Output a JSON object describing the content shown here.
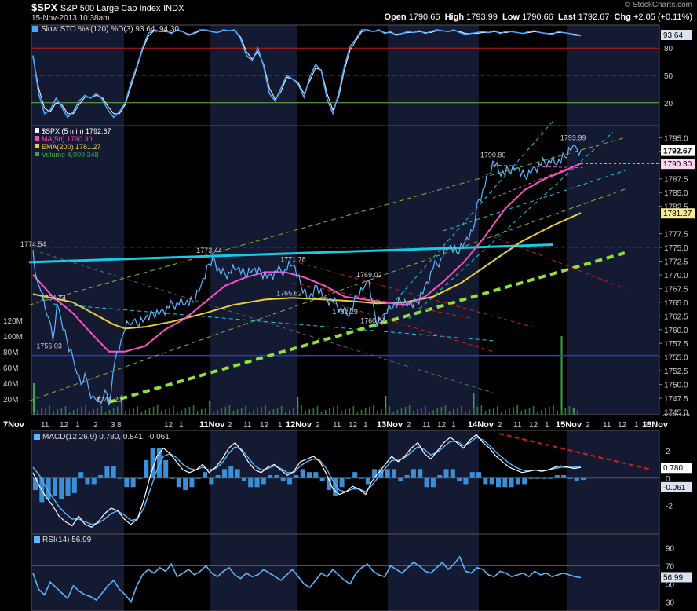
{
  "header": {
    "symbol": "$SPX",
    "name": "S&P 500 Large Cap Index",
    "exchange": "INDX",
    "datetime": "15-Nov-2013 10:38am",
    "brand": "© StockCharts.com",
    "open_label": "Open",
    "open": "1790.66",
    "high_label": "High",
    "high": "1793.99",
    "low_label": "Low",
    "low": "1790.66",
    "last_label": "Last",
    "last": "1792.67",
    "chg_label": "Chg",
    "chg": "+2.05 (+0.11%)"
  },
  "chart_data": {
    "type": "line",
    "x_day_labels": [
      "7Nov",
      "11Nov",
      "12Nov",
      "13Nov",
      "14Nov",
      "15Nov",
      "18Nov"
    ],
    "x_hour_labels": [
      "11",
      "12",
      "1",
      "2",
      "3",
      "8",
      "12",
      "1",
      "2",
      "11",
      "12",
      "1",
      "2",
      "11",
      "12",
      "1",
      "2",
      "11",
      "12",
      "1",
      "2",
      "11",
      "12",
      "1",
      "2",
      "11",
      "12",
      "1",
      "2"
    ],
    "panels": {
      "sto": {
        "legend": "Slow STO %K(120) %D(3) 93.64, 94.30",
        "y_ticks": [
          "80",
          "50",
          "20"
        ],
        "value_badge": "93.64",
        "overbought": 80,
        "oversold": 20,
        "series_k": [
          72,
          30,
          8,
          12,
          25,
          15,
          4,
          10,
          22,
          28,
          25,
          30,
          24,
          12,
          4,
          10,
          20,
          42,
          60,
          80,
          96,
          100,
          98,
          99,
          96,
          100,
          98,
          94,
          97,
          100,
          100,
          98,
          97,
          100,
          99,
          100,
          90,
          72,
          66,
          80,
          60,
          30,
          22,
          36,
          50,
          46,
          40,
          26,
          48,
          62,
          55,
          24,
          8,
          30,
          60,
          82,
          90,
          100,
          100,
          98,
          100,
          96,
          98,
          94,
          96,
          98,
          97,
          99,
          96,
          98,
          100,
          99,
          98,
          100,
          97,
          95,
          96,
          97,
          98,
          97,
          99,
          96,
          98,
          98,
          97,
          96,
          98,
          99,
          97,
          96,
          95,
          98,
          97,
          96,
          94,
          93.64
        ],
        "series_d": [
          70,
          36,
          14,
          10,
          20,
          18,
          8,
          8,
          18,
          26,
          26,
          28,
          26,
          16,
          8,
          8,
          18,
          38,
          58,
          78,
          93,
          99,
          98,
          98,
          97,
          99,
          98,
          95,
          96,
          99,
          99,
          98,
          97,
          99,
          99,
          99,
          92,
          76,
          68,
          76,
          62,
          36,
          24,
          32,
          48,
          46,
          42,
          30,
          44,
          58,
          56,
          30,
          12,
          26,
          56,
          78,
          88,
          98,
          99,
          98,
          99,
          97,
          97,
          95,
          96,
          97,
          97,
          98,
          97,
          97,
          99,
          99,
          98,
          99,
          98,
          96,
          96,
          96,
          97,
          97,
          98,
          97,
          97,
          98,
          97,
          96,
          97,
          98,
          97,
          96,
          96,
          97,
          97,
          96,
          95,
          94.3
        ]
      },
      "price": {
        "legend": [
          {
            "label": "$SPX (5 min) 1792.67",
            "color": "#ffffff"
          },
          {
            "label": "MA(50) 1790.30",
            "color": "#ff4fc8"
          },
          {
            "label": "EMA(200) 1781.27",
            "color": "#e8d13a"
          },
          {
            "label": "Volume 4,009,348",
            "color": "#3aa64f"
          }
        ],
        "y_ticks": [
          1795.0,
          1792.5,
          1787.5,
          1785.0,
          1782.5,
          1777.5,
          1775.0,
          1772.5,
          1770.0,
          1767.5,
          1765.0,
          1762.5,
          1760.0,
          1757.5,
          1755.0,
          1752.5,
          1750.0,
          1747.5,
          1745.0
        ],
        "y_range": [
          1744.5,
          1797.2
        ],
        "last_badge": "1792.67",
        "ma50_badge": "1790.30",
        "ema200_badge": "1781.27",
        "volume_ticks": [
          "120M",
          "100M",
          "80M",
          "60M",
          "40M",
          "20M"
        ],
        "volume_last": "4009348",
        "annotations": [
          {
            "text": "1774.54",
            "x": 0,
            "y": 1774.54
          },
          {
            "text": "1764.74",
            "x": 10,
            "y": 1764.74
          },
          {
            "text": "1756.03",
            "x": 8,
            "y": 1756.03
          },
          {
            "text": "1746.20",
            "x": 38,
            "y": 1746.2
          },
          {
            "text": "1773.44",
            "x": 88,
            "y": 1773.44
          },
          {
            "text": "1771.78",
            "x": 130,
            "y": 1771.78
          },
          {
            "text": "1765.62",
            "x": 128,
            "y": 1765.62
          },
          {
            "text": "1769.02",
            "x": 168,
            "y": 1769.02
          },
          {
            "text": "1762.29",
            "x": 156,
            "y": 1762.29
          },
          {
            "text": "1760.64",
            "x": 170,
            "y": 1760.64
          },
          {
            "text": "1790.80",
            "x": 230,
            "y": 1790.8
          },
          {
            "text": "1793.99",
            "x": 270,
            "y": 1793.99
          }
        ],
        "price_series": [
          [
            0,
            1774.5
          ],
          [
            2,
            1769
          ],
          [
            4,
            1767
          ],
          [
            6,
            1764
          ],
          [
            8,
            1762
          ],
          [
            10,
            1758
          ],
          [
            12,
            1764.7
          ],
          [
            14,
            1762
          ],
          [
            16,
            1760
          ],
          [
            18,
            1756
          ],
          [
            20,
            1755
          ],
          [
            22,
            1752
          ],
          [
            24,
            1750
          ],
          [
            26,
            1752
          ],
          [
            28,
            1749
          ],
          [
            30,
            1748
          ],
          [
            32,
            1747
          ],
          [
            34,
            1746.5
          ],
          [
            36,
            1749
          ],
          [
            38,
            1746.2
          ],
          [
            40,
            1752
          ],
          [
            42,
            1756
          ],
          [
            44,
            1758
          ],
          [
            46,
            1760
          ],
          [
            48,
            1761
          ],
          [
            50,
            1761.5
          ],
          [
            52,
            1761
          ],
          [
            56,
            1762
          ],
          [
            60,
            1763
          ],
          [
            64,
            1763.5
          ],
          [
            68,
            1764
          ],
          [
            72,
            1765
          ],
          [
            76,
            1764.5
          ],
          [
            80,
            1765
          ],
          [
            84,
            1768
          ],
          [
            88,
            1772
          ],
          [
            90,
            1773.4
          ],
          [
            94,
            1770
          ],
          [
            98,
            1770.5
          ],
          [
            102,
            1771
          ],
          [
            106,
            1770
          ],
          [
            110,
            1771
          ],
          [
            114,
            1770.5
          ],
          [
            118,
            1770
          ],
          [
            122,
            1770.5
          ],
          [
            126,
            1771
          ],
          [
            130,
            1771.8
          ],
          [
            134,
            1768
          ],
          [
            138,
            1765.6
          ],
          [
            142,
            1768
          ],
          [
            146,
            1766
          ],
          [
            150,
            1765
          ],
          [
            154,
            1764
          ],
          [
            158,
            1762.3
          ],
          [
            162,
            1766
          ],
          [
            166,
            1768
          ],
          [
            168,
            1769
          ],
          [
            170,
            1765
          ],
          [
            172,
            1760.6
          ],
          [
            176,
            1763
          ],
          [
            180,
            1764
          ],
          [
            184,
            1765
          ],
          [
            188,
            1764.5
          ],
          [
            192,
            1765
          ],
          [
            196,
            1768
          ],
          [
            200,
            1771
          ],
          [
            204,
            1773
          ],
          [
            208,
            1775
          ],
          [
            212,
            1774
          ],
          [
            216,
            1776
          ],
          [
            220,
            1778
          ],
          [
            222,
            1783
          ],
          [
            226,
            1786
          ],
          [
            230,
            1790.8
          ],
          [
            234,
            1788
          ],
          [
            238,
            1789
          ],
          [
            242,
            1789.5
          ],
          [
            246,
            1788
          ],
          [
            250,
            1789.5
          ],
          [
            254,
            1790
          ],
          [
            258,
            1791
          ],
          [
            262,
            1790
          ],
          [
            266,
            1791.5
          ],
          [
            270,
            1793.5
          ],
          [
            272,
            1793
          ],
          [
            274,
            1792.67
          ]
        ],
        "ma50_series": [
          [
            0,
            1770
          ],
          [
            10,
            1766
          ],
          [
            20,
            1763
          ],
          [
            30,
            1759
          ],
          [
            38,
            1756
          ],
          [
            46,
            1756
          ],
          [
            56,
            1757
          ],
          [
            66,
            1760
          ],
          [
            76,
            1762
          ],
          [
            86,
            1765
          ],
          [
            96,
            1768
          ],
          [
            106,
            1769.5
          ],
          [
            116,
            1770.5
          ],
          [
            126,
            1770.5
          ],
          [
            136,
            1769.5
          ],
          [
            146,
            1768
          ],
          [
            156,
            1766
          ],
          [
            166,
            1765.5
          ],
          [
            176,
            1765
          ],
          [
            186,
            1764.5
          ],
          [
            196,
            1766
          ],
          [
            206,
            1769
          ],
          [
            216,
            1772.5
          ],
          [
            226,
            1777
          ],
          [
            236,
            1782
          ],
          [
            246,
            1785.5
          ],
          [
            256,
            1787.5
          ],
          [
            266,
            1789
          ],
          [
            274,
            1790.3
          ]
        ],
        "ema200_series": [
          [
            0,
            1766.5
          ],
          [
            20,
            1765
          ],
          [
            40,
            1761
          ],
          [
            46,
            1760.2
          ],
          [
            56,
            1760.5
          ],
          [
            70,
            1761.5
          ],
          [
            86,
            1763
          ],
          [
            100,
            1764.5
          ],
          [
            116,
            1765.5
          ],
          [
            130,
            1765.8
          ],
          [
            146,
            1765.5
          ],
          [
            160,
            1765.2
          ],
          [
            172,
            1764.8
          ],
          [
            186,
            1765
          ],
          [
            200,
            1766
          ],
          [
            214,
            1768.5
          ],
          [
            228,
            1772
          ],
          [
            244,
            1776
          ],
          [
            260,
            1779
          ],
          [
            274,
            1781.27
          ]
        ],
        "volume_spikes": [
          {
            "x": 0,
            "v": 40
          },
          {
            "x": 44,
            "v": 25
          },
          {
            "x": 88,
            "v": 18
          },
          {
            "x": 132,
            "v": 22
          },
          {
            "x": 176,
            "v": 24
          },
          {
            "x": 220,
            "v": 28
          },
          {
            "x": 264,
            "v": 100
          },
          {
            "x": 270,
            "v": 8
          }
        ]
      },
      "macd": {
        "legend": "MACD(12,26,9) 0.780, 0.841, -0.061",
        "y_ticks": [
          "2",
          "0",
          "-2"
        ],
        "macd_badge": "0.780",
        "hist_badge": "-0.061",
        "macd_series": [
          0.4,
          -0.6,
          -1.4,
          -2,
          -2.8,
          -3.2,
          -3.5,
          -2.8,
          -3.4,
          -3.6,
          -3.2,
          -2.6,
          -2.2,
          -2.4,
          -3,
          -3.4,
          -3.0,
          -1.6,
          0.2,
          1.6,
          2.2,
          1.8,
          1.2,
          0.6,
          0.4,
          0.6,
          1.0,
          0.4,
          0.8,
          1.4,
          2.2,
          2.6,
          2.0,
          1.2,
          0.6,
          0.4,
          0.8,
          1.0,
          0.6,
          0.2,
          0.5,
          1.2,
          1.4,
          1.6,
          1.2,
          0.3,
          -0.8,
          -1.2,
          -1.0,
          -0.6,
          -0.8,
          -1.2,
          -0.2,
          0.4,
          1.0,
          1.6,
          1.2,
          1.6,
          2.2,
          2.6,
          1.8,
          1.4,
          2.0,
          2.6,
          3.0,
          2.6,
          2.2,
          2.8,
          3.2,
          2.6,
          2.2,
          1.6,
          1.2,
          0.8,
          0.6,
          0.4,
          0.5,
          0.6,
          0.5,
          0.6,
          0.8,
          0.9,
          0.8,
          0.7,
          0.78
        ],
        "signal_series": [
          0.8,
          0.2,
          -0.7,
          -1.4,
          -2.1,
          -2.6,
          -3.0,
          -3.0,
          -3.2,
          -3.4,
          -3.3,
          -3.0,
          -2.6,
          -2.4,
          -2.7,
          -3.1,
          -3.0,
          -2.2,
          -0.8,
          0.6,
          1.6,
          1.8,
          1.5,
          1.0,
          0.7,
          0.6,
          0.8,
          0.6,
          0.7,
          1.1,
          1.8,
          2.3,
          2.1,
          1.5,
          0.9,
          0.6,
          0.7,
          0.9,
          0.7,
          0.4,
          0.4,
          0.9,
          1.2,
          1.4,
          1.3,
          0.7,
          -0.2,
          -0.9,
          -1.0,
          -0.8,
          -0.8,
          -1.0,
          -0.5,
          0.1,
          0.7,
          1.3,
          1.3,
          1.5,
          1.9,
          2.3,
          2.1,
          1.7,
          1.9,
          2.3,
          2.7,
          2.7,
          2.4,
          2.6,
          3.0,
          2.8,
          2.4,
          1.9,
          1.5,
          1.1,
          0.8,
          0.6,
          0.5,
          0.6,
          0.5,
          0.6,
          0.7,
          0.8,
          0.8,
          0.8,
          0.841
        ],
        "divergence_label": ""
      },
      "rsi": {
        "legend": "RSI(14) 56.99",
        "y_ticks": [
          "90",
          "70",
          "50",
          "30"
        ],
        "value_badge": "56.99",
        "series": [
          62,
          44,
          38,
          52,
          46,
          40,
          34,
          48,
          42,
          38,
          36,
          32,
          40,
          48,
          54,
          44,
          38,
          30,
          48,
          60,
          66,
          62,
          68,
          64,
          72,
          58,
          62,
          66,
          60,
          64,
          70,
          62,
          58,
          64,
          68,
          60,
          56,
          62,
          58,
          60,
          66,
          62,
          58,
          54,
          60,
          66,
          58,
          50,
          46,
          54,
          62,
          58,
          66,
          60,
          54,
          50,
          62,
          68,
          72,
          64,
          60,
          58,
          70,
          66,
          62,
          68,
          74,
          70,
          64,
          62,
          68,
          74,
          66,
          72,
          80,
          64,
          62,
          68,
          66,
          60,
          58,
          64,
          62,
          58,
          60,
          62,
          58,
          64,
          60,
          62,
          58,
          60,
          62,
          60,
          58,
          56.99
        ]
      }
    }
  }
}
